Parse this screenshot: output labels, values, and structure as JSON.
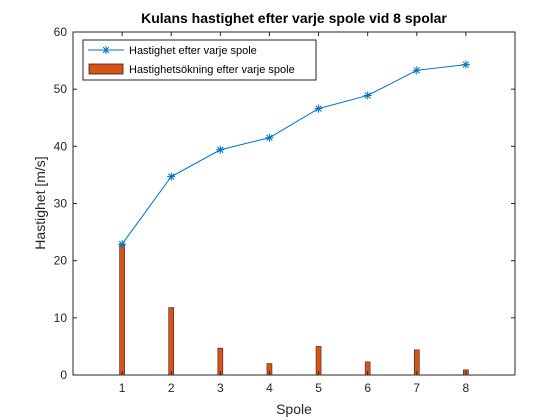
{
  "chart_data": {
    "type": "bar+line",
    "title": "Kulans hastighet efter varje spole vid 8 spolar",
    "xlabel": "Spole",
    "ylabel": "Hastighet [m/s]",
    "xlim": [
      0,
      9
    ],
    "ylim": [
      0,
      60
    ],
    "xticks": [
      1,
      2,
      3,
      4,
      5,
      6,
      7,
      8
    ],
    "yticks": [
      0,
      10,
      20,
      30,
      40,
      50,
      60
    ],
    "grid": false,
    "legend_position": "top-left",
    "series": [
      {
        "name": "Hastighet efter varje spole",
        "type": "line",
        "marker": "asterisk",
        "color": "#0072BD",
        "x": [
          1,
          2,
          3,
          4,
          5,
          6,
          7,
          8
        ],
        "values": [
          22.9,
          34.7,
          39.4,
          41.5,
          46.6,
          48.9,
          53.3,
          54.3
        ]
      },
      {
        "name": "Hastighetsökning efter varje spole",
        "type": "bar",
        "color": "#D95319",
        "x": [
          1,
          2,
          3,
          4,
          5,
          6,
          7,
          8
        ],
        "values": [
          22.9,
          11.8,
          4.7,
          2.0,
          5.0,
          2.3,
          4.4,
          0.9
        ]
      }
    ]
  }
}
